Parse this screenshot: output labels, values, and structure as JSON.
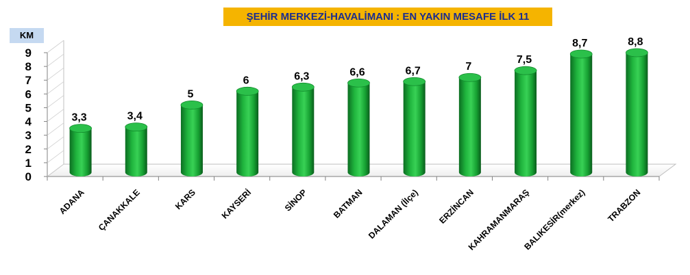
{
  "chart_data": {
    "type": "bar",
    "title": "ŞEHİR MERKEZİ-HAVALİMANI  : EN YAKIN MESAFE İLK 11",
    "ylabel": "KM",
    "xlabel": "",
    "ylim": [
      0,
      9
    ],
    "yticks": [
      "0",
      "1",
      "2",
      "3",
      "4",
      "5",
      "6",
      "7",
      "8",
      "9"
    ],
    "categories": [
      "ADANA",
      "ÇANAKKALE",
      "KARS",
      "KAYSERİ",
      "SİNOP",
      "BATMAN",
      "DALAMAN (İlçe)",
      "ERZİNCAN",
      "KAHRAMANMARAŞ",
      "BALIKESİR(merkez)",
      "TRABZON"
    ],
    "values": [
      3.3,
      3.4,
      5,
      6,
      6.3,
      6.6,
      6.7,
      7,
      7.5,
      8.7,
      8.8
    ],
    "data_labels": [
      "3,3",
      "3,4",
      "5",
      "6",
      "6,3",
      "6,6",
      "6,7",
      "7",
      "7,5",
      "8,7",
      "8,8"
    ],
    "bar_shape": "cylinder",
    "bar_color": "#1aa336",
    "grid": false,
    "legend": "none"
  }
}
